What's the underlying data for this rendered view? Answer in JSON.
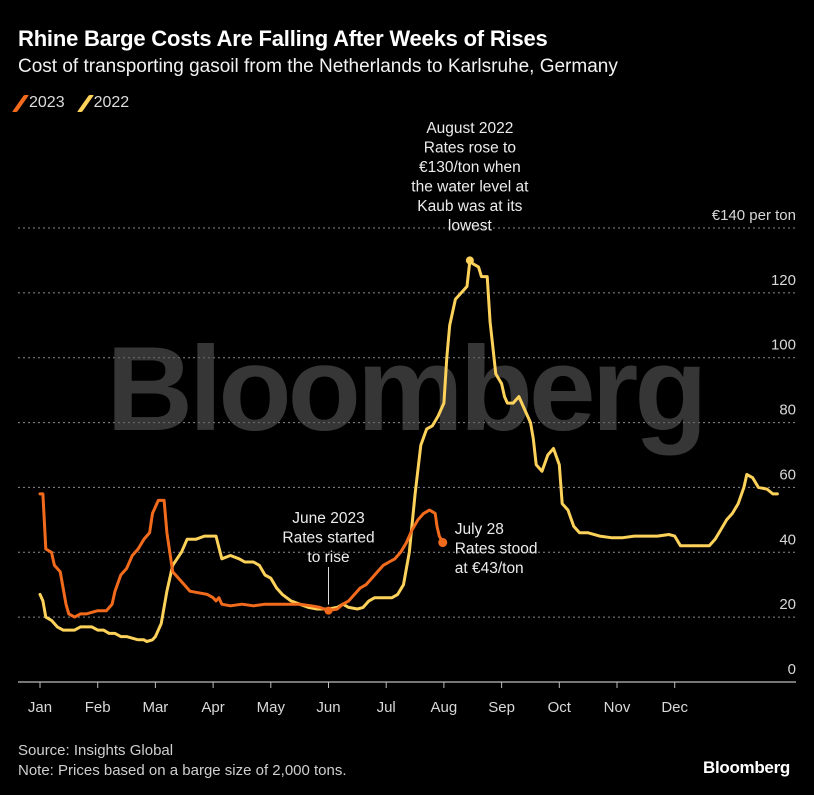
{
  "header": {
    "title": "Rhine Barge Costs Are Falling After Weeks of Rises",
    "subtitle": "Cost of transporting gasoil from the Netherlands to Karlsruhe, Germany"
  },
  "footer": {
    "source": "Source: Insights Global",
    "note": "Note: Prices based on a barge size of 2,000 tons.",
    "brand": "Bloomberg"
  },
  "watermark": "Bloomberg",
  "chart_data": {
    "type": "line",
    "ylim": [
      0,
      140
    ],
    "y_ticks": [
      {
        "value": 0,
        "label": "0"
      },
      {
        "value": 20,
        "label": "20"
      },
      {
        "value": 40,
        "label": "40"
      },
      {
        "value": 60,
        "label": "60"
      },
      {
        "value": 80,
        "label": "80"
      },
      {
        "value": 100,
        "label": "100"
      },
      {
        "value": 120,
        "label": "120"
      },
      {
        "value": 140,
        "label": "€140 per ton"
      }
    ],
    "x_ticks": [
      "Jan",
      "Feb",
      "Mar",
      "Apr",
      "May",
      "Jun",
      "Jul",
      "Aug",
      "Sep",
      "Oct",
      "Nov",
      "Dec"
    ],
    "grid": true,
    "legend_position": "top-left",
    "series": [
      {
        "name": "2023",
        "color": "#f26b1d",
        "points": [
          [
            0.0,
            58
          ],
          [
            0.05,
            58
          ],
          [
            0.1,
            41
          ],
          [
            0.2,
            40
          ],
          [
            0.25,
            36
          ],
          [
            0.35,
            34
          ],
          [
            0.45,
            24
          ],
          [
            0.5,
            21
          ],
          [
            0.6,
            20
          ],
          [
            0.7,
            21
          ],
          [
            0.8,
            21
          ],
          [
            0.9,
            21.5
          ],
          [
            1.0,
            22
          ],
          [
            1.15,
            22
          ],
          [
            1.25,
            24
          ],
          [
            1.3,
            28
          ],
          [
            1.4,
            33
          ],
          [
            1.5,
            35
          ],
          [
            1.6,
            39
          ],
          [
            1.7,
            41
          ],
          [
            1.8,
            44
          ],
          [
            1.9,
            46
          ],
          [
            1.95,
            52
          ],
          [
            2.05,
            56
          ],
          [
            2.15,
            56
          ],
          [
            2.2,
            46
          ],
          [
            2.3,
            34
          ],
          [
            2.4,
            32
          ],
          [
            2.5,
            30
          ],
          [
            2.6,
            28
          ],
          [
            2.75,
            27.5
          ],
          [
            2.9,
            27
          ],
          [
            3.0,
            26
          ],
          [
            3.05,
            25
          ],
          [
            3.1,
            26
          ],
          [
            3.15,
            24
          ],
          [
            3.3,
            23.5
          ],
          [
            3.5,
            24
          ],
          [
            3.7,
            23.5
          ],
          [
            3.9,
            24
          ],
          [
            4.1,
            24
          ],
          [
            4.3,
            24
          ],
          [
            4.5,
            24
          ],
          [
            4.7,
            23.5
          ],
          [
            4.85,
            23
          ],
          [
            5.0,
            22
          ],
          [
            5.15,
            22.5
          ],
          [
            5.25,
            24
          ],
          [
            5.35,
            25
          ],
          [
            5.45,
            27
          ],
          [
            5.55,
            29
          ],
          [
            5.65,
            30
          ],
          [
            5.75,
            32
          ],
          [
            5.85,
            34
          ],
          [
            5.95,
            36
          ],
          [
            6.05,
            37
          ],
          [
            6.15,
            38
          ],
          [
            6.25,
            40
          ],
          [
            6.35,
            43
          ],
          [
            6.45,
            47
          ],
          [
            6.55,
            50
          ],
          [
            6.65,
            52
          ],
          [
            6.75,
            53
          ],
          [
            6.85,
            52
          ],
          [
            6.88,
            48
          ],
          [
            6.92,
            45
          ],
          [
            6.98,
            43
          ]
        ]
      },
      {
        "name": "2022",
        "color": "#fdd25a",
        "points": [
          [
            0.0,
            27
          ],
          [
            0.05,
            25
          ],
          [
            0.1,
            20
          ],
          [
            0.2,
            19
          ],
          [
            0.3,
            17
          ],
          [
            0.4,
            16
          ],
          [
            0.5,
            16
          ],
          [
            0.6,
            16
          ],
          [
            0.7,
            17
          ],
          [
            0.8,
            17
          ],
          [
            0.9,
            17
          ],
          [
            1.0,
            16
          ],
          [
            1.1,
            16
          ],
          [
            1.2,
            15
          ],
          [
            1.3,
            15
          ],
          [
            1.4,
            14
          ],
          [
            1.5,
            14
          ],
          [
            1.6,
            13.5
          ],
          [
            1.7,
            13
          ],
          [
            1.8,
            13
          ],
          [
            1.85,
            12.5
          ],
          [
            1.95,
            13
          ],
          [
            2.0,
            14
          ],
          [
            2.1,
            18
          ],
          [
            2.2,
            28
          ],
          [
            2.3,
            36
          ],
          [
            2.45,
            40
          ],
          [
            2.55,
            44
          ],
          [
            2.7,
            44
          ],
          [
            2.85,
            45
          ],
          [
            3.05,
            45
          ],
          [
            3.15,
            38
          ],
          [
            3.3,
            39
          ],
          [
            3.45,
            38
          ],
          [
            3.55,
            37
          ],
          [
            3.7,
            37
          ],
          [
            3.8,
            36
          ],
          [
            3.9,
            33
          ],
          [
            4.0,
            32
          ],
          [
            4.1,
            29
          ],
          [
            4.2,
            27
          ],
          [
            4.35,
            25
          ],
          [
            4.5,
            24
          ],
          [
            4.65,
            23
          ],
          [
            4.8,
            22.5
          ],
          [
            5.0,
            22.5
          ],
          [
            5.15,
            23
          ],
          [
            5.25,
            24
          ],
          [
            5.35,
            23
          ],
          [
            5.5,
            22.5
          ],
          [
            5.6,
            23
          ],
          [
            5.7,
            25
          ],
          [
            5.8,
            26
          ],
          [
            5.95,
            26
          ],
          [
            6.1,
            26
          ],
          [
            6.2,
            27
          ],
          [
            6.3,
            30
          ],
          [
            6.4,
            40
          ],
          [
            6.5,
            58
          ],
          [
            6.6,
            73
          ],
          [
            6.7,
            78
          ],
          [
            6.8,
            79
          ],
          [
            6.9,
            82
          ],
          [
            7.0,
            86
          ],
          [
            7.05,
            100
          ],
          [
            7.1,
            110
          ],
          [
            7.2,
            118
          ],
          [
            7.3,
            120
          ],
          [
            7.4,
            122
          ],
          [
            7.45,
            130
          ],
          [
            7.5,
            129
          ],
          [
            7.6,
            128
          ],
          [
            7.65,
            125
          ],
          [
            7.75,
            125
          ],
          [
            7.8,
            111
          ],
          [
            7.9,
            95
          ],
          [
            8.0,
            92
          ],
          [
            8.05,
            88
          ],
          [
            8.1,
            86
          ],
          [
            8.2,
            86
          ],
          [
            8.3,
            88
          ],
          [
            8.4,
            84
          ],
          [
            8.5,
            80
          ],
          [
            8.55,
            75
          ],
          [
            8.6,
            67
          ],
          [
            8.7,
            65
          ],
          [
            8.8,
            70
          ],
          [
            8.9,
            72
          ],
          [
            9.0,
            67
          ],
          [
            9.05,
            55
          ],
          [
            9.15,
            53
          ],
          [
            9.25,
            48
          ],
          [
            9.35,
            46
          ],
          [
            9.5,
            46
          ],
          [
            9.7,
            45
          ],
          [
            9.9,
            44.5
          ],
          [
            10.1,
            44.5
          ],
          [
            10.3,
            45
          ],
          [
            10.5,
            45
          ],
          [
            10.7,
            45
          ],
          [
            10.9,
            45.5
          ],
          [
            11.0,
            45
          ],
          [
            11.1,
            42
          ],
          [
            11.3,
            42
          ],
          [
            11.5,
            42
          ],
          [
            11.6,
            42
          ],
          [
            11.7,
            44
          ],
          [
            11.8,
            47
          ],
          [
            11.9,
            50
          ],
          [
            12.0,
            52
          ],
          [
            12.1,
            55
          ],
          [
            12.2,
            60
          ],
          [
            12.25,
            64
          ],
          [
            12.35,
            63
          ],
          [
            12.45,
            60
          ],
          [
            12.6,
            59.5
          ],
          [
            12.7,
            58
          ],
          [
            12.78,
            58
          ]
        ]
      }
    ],
    "annotations": [
      {
        "x": 7.45,
        "y": 130,
        "text": [
          "August 2022",
          "Rates rose to",
          "€130/ton when",
          "the water level at",
          "Kaub was at its",
          "lowest"
        ]
      },
      {
        "x": 5.0,
        "y": 22,
        "text": [
          "June 2023",
          "Rates started",
          "to rise"
        ]
      },
      {
        "x": 6.98,
        "y": 43,
        "text": [
          "July 28",
          "Rates stood",
          "at €43/ton"
        ]
      }
    ]
  }
}
